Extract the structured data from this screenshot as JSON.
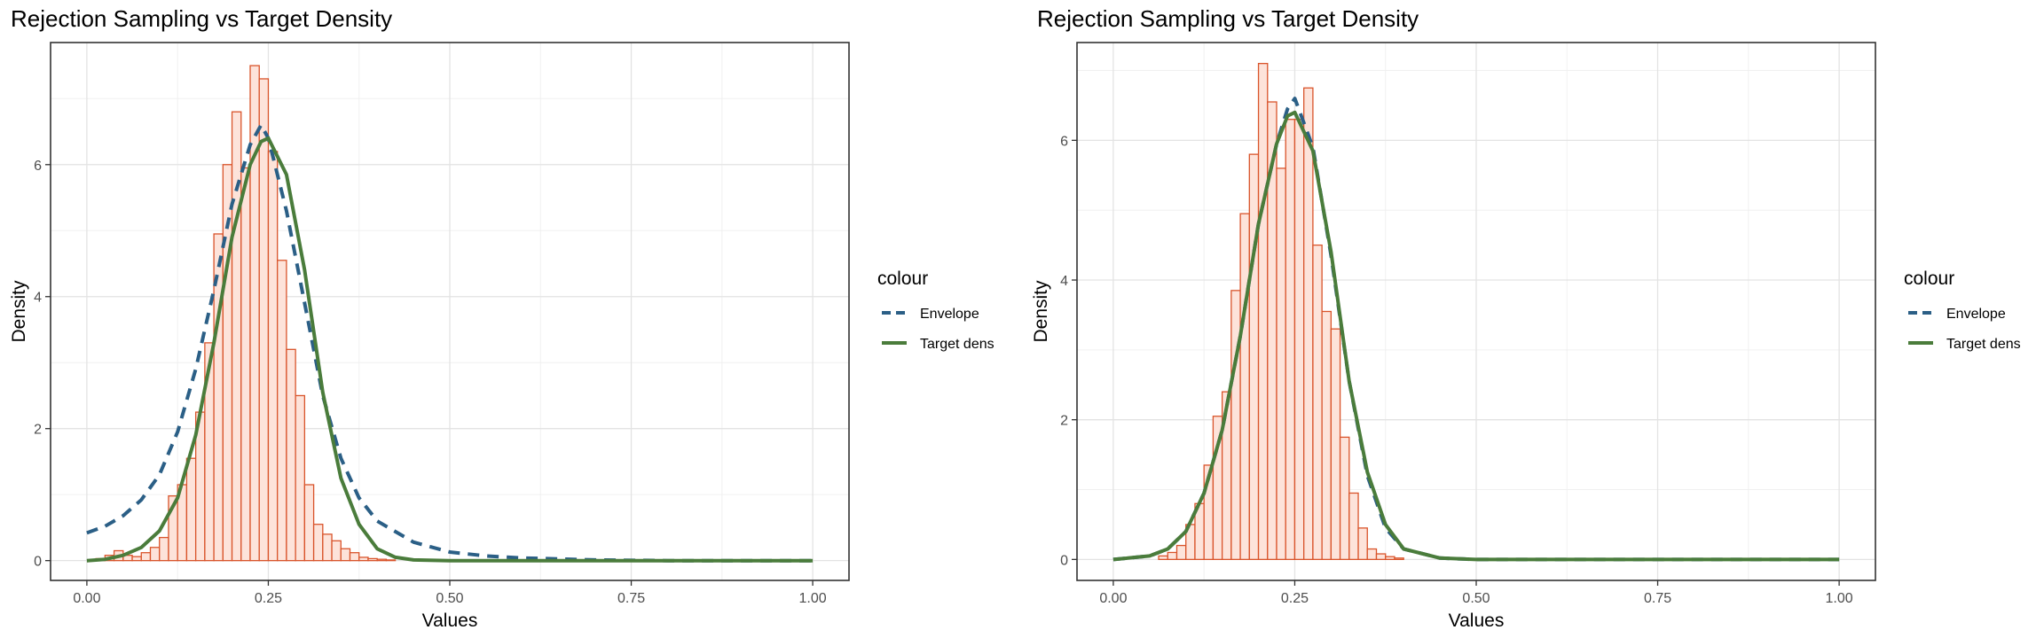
{
  "chart_data": [
    {
      "type": "histogram",
      "title": "Rejection Sampling vs Target Density",
      "xlabel": "Values",
      "ylabel": "Density",
      "xlim": [
        -0.05,
        1.05
      ],
      "ylim": [
        -0.3,
        7.85
      ],
      "x_ticks": [
        "0.00",
        "0.25",
        "0.50",
        "0.75",
        "1.00"
      ],
      "x_tick_values": [
        0,
        0.25,
        0.5,
        0.75,
        1.0
      ],
      "y_ticks": [
        "0",
        "2",
        "4",
        "6"
      ],
      "y_tick_values": [
        0,
        2,
        4,
        6
      ],
      "grid": true,
      "legend": {
        "title": "colour",
        "position": "right",
        "items": [
          {
            "label": "Envelope",
            "color": "#2b5f86",
            "style": "dashed"
          },
          {
            "label": "Target dens",
            "color": "#4a7c3b",
            "style": "solid"
          }
        ]
      },
      "histogram": {
        "bin_width": 0.0125,
        "fill": "#fde3da",
        "stroke": "#d9542b",
        "bin_starts": [
          0.0125,
          0.025,
          0.0375,
          0.05,
          0.0625,
          0.075,
          0.0875,
          0.1,
          0.1125,
          0.125,
          0.1375,
          0.15,
          0.1625,
          0.175,
          0.1875,
          0.2,
          0.2125,
          0.225,
          0.2375,
          0.25,
          0.2625,
          0.275,
          0.2875,
          0.3,
          0.3125,
          0.325,
          0.3375,
          0.35,
          0.3625,
          0.375,
          0.3875,
          0.4,
          0.4125
        ],
        "densities": [
          0.03,
          0.08,
          0.15,
          0.08,
          0.06,
          0.12,
          0.2,
          0.35,
          0.98,
          1.15,
          1.55,
          2.25,
          3.3,
          4.95,
          6.0,
          6.8,
          5.95,
          7.5,
          7.3,
          6.2,
          4.55,
          3.2,
          2.5,
          1.15,
          0.55,
          0.4,
          0.3,
          0.18,
          0.12,
          0.05,
          0.03,
          0.02,
          0.01
        ]
      },
      "curves": [
        {
          "name": "Envelope",
          "color": "#2b5f86",
          "style": "dashed",
          "x": [
            0,
            0.025,
            0.05,
            0.075,
            0.1,
            0.125,
            0.15,
            0.175,
            0.2,
            0.225,
            0.24,
            0.25,
            0.275,
            0.3,
            0.325,
            0.35,
            0.375,
            0.4,
            0.45,
            0.5,
            0.55,
            0.6,
            0.7,
            0.8,
            0.9,
            1.0
          ],
          "y": [
            0.42,
            0.52,
            0.68,
            0.92,
            1.3,
            1.95,
            2.9,
            4.1,
            5.4,
            6.3,
            6.6,
            6.4,
            5.3,
            3.9,
            2.5,
            1.55,
            0.95,
            0.6,
            0.28,
            0.13,
            0.07,
            0.04,
            0.01,
            0.0,
            0.0,
            0.0
          ]
        },
        {
          "name": "Target dens",
          "color": "#4a7c3b",
          "style": "solid",
          "x": [
            0,
            0.025,
            0.05,
            0.075,
            0.1,
            0.125,
            0.15,
            0.175,
            0.2,
            0.225,
            0.24,
            0.25,
            0.275,
            0.3,
            0.325,
            0.35,
            0.375,
            0.4,
            0.425,
            0.45,
            0.5,
            0.6,
            0.75,
            1.0
          ],
          "y": [
            0.0,
            0.02,
            0.08,
            0.2,
            0.45,
            0.95,
            1.9,
            3.3,
            4.9,
            6.0,
            6.35,
            6.4,
            5.85,
            4.4,
            2.55,
            1.25,
            0.55,
            0.18,
            0.05,
            0.01,
            0.0,
            0.0,
            0.0,
            0.0
          ]
        }
      ]
    },
    {
      "type": "histogram",
      "title": "Rejection Sampling vs Target Density",
      "xlabel": "Values",
      "ylabel": "Density",
      "xlim": [
        -0.05,
        1.05
      ],
      "ylim": [
        -0.3,
        7.4
      ],
      "x_ticks": [
        "0.00",
        "0.25",
        "0.50",
        "0.75",
        "1.00"
      ],
      "x_tick_values": [
        0,
        0.25,
        0.5,
        0.75,
        1.0
      ],
      "y_ticks": [
        "0",
        "2",
        "4",
        "6"
      ],
      "y_tick_values": [
        0,
        2,
        4,
        6
      ],
      "grid": true,
      "legend": {
        "title": "colour",
        "position": "right",
        "items": [
          {
            "label": "Envelope",
            "color": "#2b5f86",
            "style": "dashed"
          },
          {
            "label": "Target dens",
            "color": "#4a7c3b",
            "style": "solid"
          }
        ]
      },
      "histogram": {
        "bin_width": 0.0125,
        "fill": "#fde3da",
        "stroke": "#d9542b",
        "bin_starts": [
          0.0625,
          0.075,
          0.0875,
          0.1,
          0.1125,
          0.125,
          0.1375,
          0.15,
          0.1625,
          0.175,
          0.1875,
          0.2,
          0.2125,
          0.225,
          0.2375,
          0.25,
          0.2625,
          0.275,
          0.2875,
          0.3,
          0.3125,
          0.325,
          0.3375,
          0.35,
          0.3625,
          0.375,
          0.3875
        ],
        "densities": [
          0.05,
          0.1,
          0.2,
          0.5,
          0.8,
          1.35,
          2.05,
          2.4,
          3.85,
          4.95,
          5.8,
          7.1,
          6.55,
          5.6,
          6.3,
          6.3,
          6.75,
          4.5,
          3.55,
          3.3,
          1.75,
          0.95,
          0.45,
          0.15,
          0.08,
          0.04,
          0.02
        ]
      },
      "curves": [
        {
          "name": "Envelope",
          "color": "#2b5f86",
          "style": "dashed",
          "x": [
            0,
            0.05,
            0.075,
            0.1,
            0.125,
            0.15,
            0.175,
            0.2,
            0.225,
            0.24,
            0.25,
            0.275,
            0.3,
            0.325,
            0.35,
            0.375,
            0.4,
            0.45,
            0.5,
            0.75,
            1.0
          ],
          "y": [
            0.0,
            0.05,
            0.15,
            0.4,
            0.95,
            1.85,
            3.2,
            4.8,
            5.95,
            6.45,
            6.6,
            5.9,
            4.35,
            2.55,
            1.2,
            0.45,
            0.15,
            0.02,
            0.0,
            0.0,
            0.0
          ]
        },
        {
          "name": "Target dens",
          "color": "#4a7c3b",
          "style": "solid",
          "x": [
            0,
            0.05,
            0.075,
            0.1,
            0.125,
            0.15,
            0.175,
            0.2,
            0.225,
            0.24,
            0.25,
            0.275,
            0.3,
            0.325,
            0.35,
            0.375,
            0.4,
            0.45,
            0.5,
            0.75,
            1.0
          ],
          "y": [
            0.0,
            0.05,
            0.15,
            0.4,
            0.95,
            1.85,
            3.2,
            4.8,
            5.95,
            6.35,
            6.4,
            5.85,
            4.4,
            2.55,
            1.25,
            0.5,
            0.15,
            0.02,
            0.0,
            0.0,
            0.0
          ]
        }
      ]
    }
  ]
}
